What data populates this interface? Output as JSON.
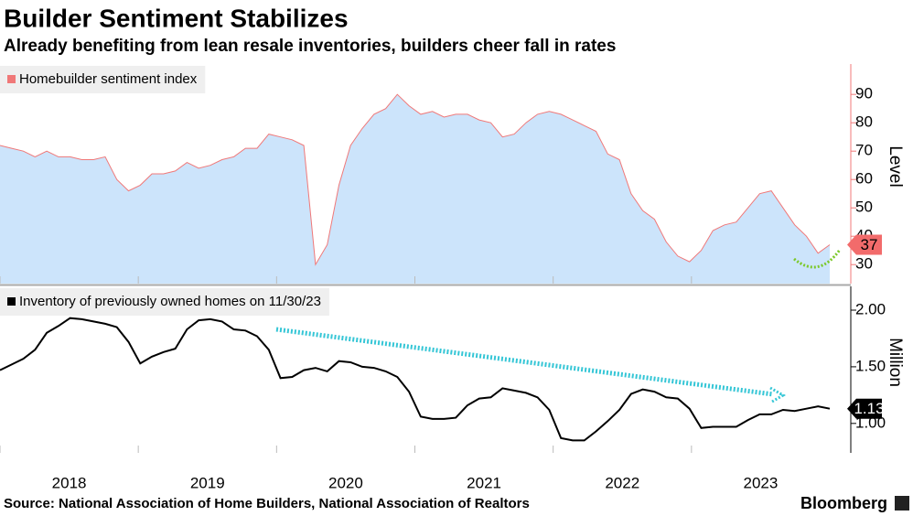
{
  "title": "Builder Sentiment Stabilizes",
  "subtitle": "Already benefiting from lean resale inventories, builders cheer fall in rates",
  "source": "Source: National Association of Home Builders, National Association of Realtors",
  "brand": "Bloomberg",
  "chart_data": [
    {
      "type": "area",
      "y_axis_label": "Level",
      "xlim": [
        2018,
        2024
      ],
      "xticks": [
        2018,
        2019,
        2020,
        2021,
        2022,
        2023
      ],
      "ylim": [
        23.3,
        100.7
      ],
      "yticks": [
        30,
        40,
        50,
        60,
        70,
        80,
        90
      ],
      "series": [
        {
          "name": "Homebuilder sentiment index",
          "color": "#f07878",
          "fill": "#cce4fb",
          "values": [
            72,
            71,
            70,
            68,
            70,
            68,
            68,
            67,
            67,
            68,
            60,
            56,
            58,
            62,
            62,
            63,
            66,
            64,
            65,
            67,
            68,
            71,
            71,
            76,
            75,
            74,
            72,
            30,
            37,
            58,
            72,
            78,
            83,
            85,
            90,
            86,
            83,
            84,
            82,
            83,
            83,
            81,
            80,
            75,
            76,
            80,
            83,
            84,
            83,
            81,
            79,
            77,
            69,
            67,
            55,
            49,
            46,
            38,
            33,
            31,
            35,
            42,
            44,
            45,
            50,
            55,
            56,
            50,
            44,
            40,
            34,
            37
          ]
        }
      ]
    },
    {
      "type": "line",
      "y_axis_label": "Million",
      "xlim": [
        2018,
        2024
      ],
      "xticks": [
        2018,
        2019,
        2020,
        2021,
        2022,
        2023
      ],
      "ylim": [
        0.74,
        2.21
      ],
      "yticks": [
        {
          "value": 1.0,
          "label": "1.00"
        },
        {
          "value": 1.5,
          "label": "1.50"
        },
        {
          "value": 2.0,
          "label": "2.00"
        }
      ],
      "series": [
        {
          "name": "Inventory of previously owned homes on 11/30/23",
          "color": "#000000",
          "values": [
            1.47,
            1.52,
            1.57,
            1.65,
            1.8,
            1.86,
            1.93,
            1.92,
            1.9,
            1.88,
            1.85,
            1.72,
            1.53,
            1.59,
            1.63,
            1.66,
            1.83,
            1.91,
            1.92,
            1.9,
            1.83,
            1.82,
            1.77,
            1.65,
            1.4,
            1.41,
            1.47,
            1.49,
            1.46,
            1.55,
            1.54,
            1.5,
            1.49,
            1.46,
            1.41,
            1.28,
            1.06,
            1.04,
            1.04,
            1.05,
            1.16,
            1.22,
            1.23,
            1.31,
            1.29,
            1.27,
            1.23,
            1.12,
            0.87,
            0.85,
            0.85,
            0.93,
            1.02,
            1.12,
            1.26,
            1.3,
            1.28,
            1.23,
            1.22,
            1.13,
            0.96,
            0.97,
            0.97,
            0.97,
            1.03,
            1.08,
            1.08,
            1.12,
            1.11,
            1.13,
            1.15,
            1.13
          ]
        }
      ]
    }
  ]
}
